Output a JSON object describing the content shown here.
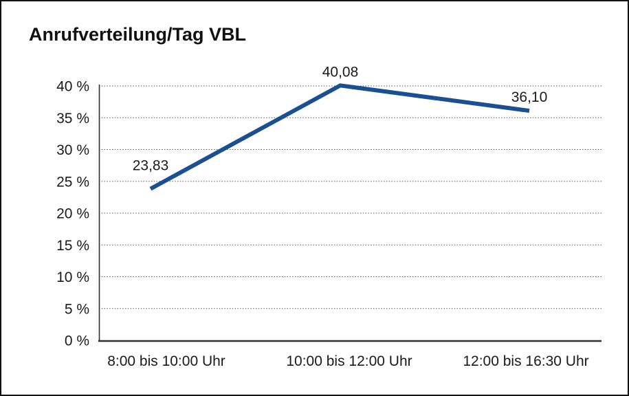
{
  "title": "Anrufverteilung/Tag VBL",
  "chart_data": {
    "type": "line",
    "title": "Anrufverteilung/Tag VBL",
    "categories": [
      "8:00 bis 10:00 Uhr",
      "10:00 bis 12:00 Uhr",
      "12:00 bis 16:30 Uhr"
    ],
    "values": [
      23.83,
      40.08,
      36.1
    ],
    "value_labels": [
      "23,83",
      "40,08",
      "36,10"
    ],
    "xlabel": "",
    "ylabel": "",
    "ylim": [
      0,
      40
    ],
    "ytick_step": 5,
    "ytick_labels": [
      "0 %",
      "5 %",
      "10 %",
      "15 %",
      "20 %",
      "25 %",
      "30 %",
      "35 %",
      "40 %"
    ],
    "grid": "horizontal-dotted",
    "legend_position": "none",
    "line_color": "#1a4f94",
    "gridline_color": "#4a4a4a",
    "axis_color": "#2e2e2e",
    "text_color": "#1a1a1a"
  }
}
